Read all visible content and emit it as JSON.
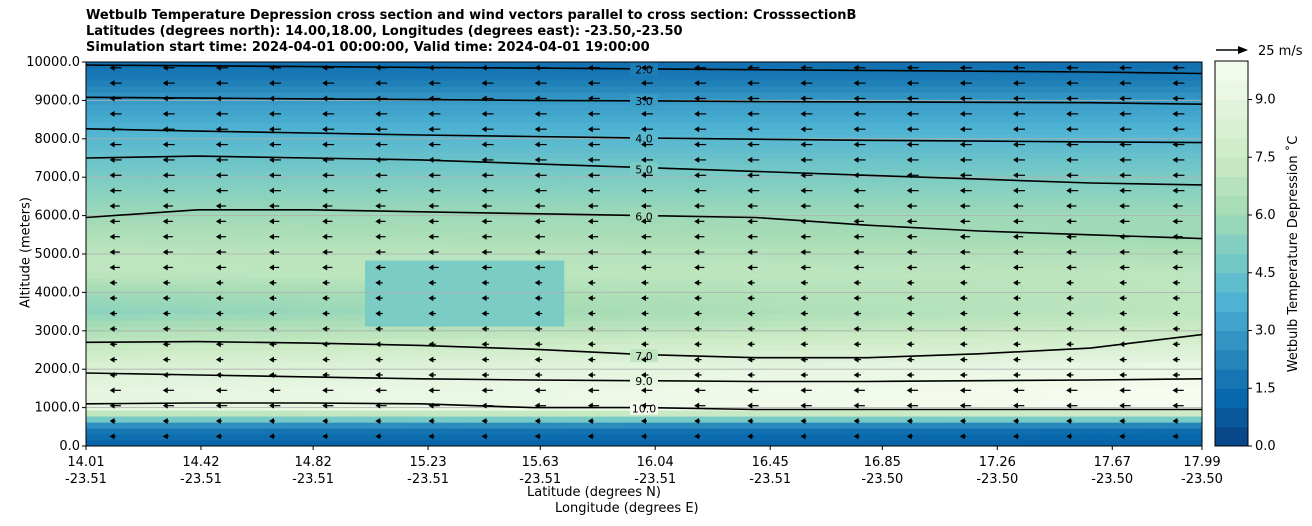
{
  "titles": {
    "line1": "Wetbulb Temperature Depression cross section and wind vectors parallel to cross section: CrosssectionB",
    "line2": "Latitudes (degrees north): 14.00,18.00, Longitudes (degrees east): -23.50,-23.50",
    "line3": "Simulation start time: 2024-04-01 00:00:00, Valid time: 2024-04-01 19:00:00"
  },
  "chart_data": {
    "type": "heatmap",
    "ylabel": "Altitude (meters)",
    "xlabel_lat": "Latitude (degrees N)",
    "xlabel_lon": "Longitude (degrees E)",
    "ylim": [
      0,
      10000
    ],
    "y_ticks": [
      "0.0",
      "1000.0",
      "2000.0",
      "3000.0",
      "4000.0",
      "5000.0",
      "6000.0",
      "7000.0",
      "8000.0",
      "9000.0",
      "10000.0"
    ],
    "y_tick_values": [
      0,
      1000,
      2000,
      3000,
      4000,
      5000,
      6000,
      7000,
      8000,
      9000,
      10000
    ],
    "x_ticks": [
      {
        "lat": "14.01",
        "lon": "-23.51",
        "value": 14.01
      },
      {
        "lat": "14.42",
        "lon": "-23.51",
        "value": 14.42
      },
      {
        "lat": "14.82",
        "lon": "-23.51",
        "value": 14.82
      },
      {
        "lat": "15.23",
        "lon": "-23.51",
        "value": 15.23
      },
      {
        "lat": "15.63",
        "lon": "-23.51",
        "value": 15.63
      },
      {
        "lat": "16.04",
        "lon": "-23.51",
        "value": 16.04
      },
      {
        "lat": "16.45",
        "lon": "-23.51",
        "value": 16.45
      },
      {
        "lat": "16.85",
        "lon": "-23.50",
        "value": 16.85
      },
      {
        "lat": "17.26",
        "lon": "-23.50",
        "value": 17.26
      },
      {
        "lat": "17.67",
        "lon": "-23.50",
        "value": 17.67
      },
      {
        "lat": "17.99",
        "lon": "-23.50",
        "value": 17.99
      }
    ],
    "xlim": [
      14.01,
      17.99
    ],
    "grid": "horizontal",
    "colorbar": {
      "label": "Wetbulb Temperature Depression ˚C",
      "range": [
        0,
        10
      ],
      "ticks": [
        "0.0",
        "1.5",
        "3.0",
        "4.5",
        "6.0",
        "7.5",
        "9.0"
      ],
      "tick_values": [
        0,
        1.5,
        3.0,
        4.5,
        6.0,
        7.5,
        9.0
      ],
      "colors": [
        "#084081",
        "#0868ac",
        "#2b8cbe",
        "#4eb3d3",
        "#7bccc4",
        "#a8ddb5",
        "#ccebc5",
        "#e0f3db",
        "#f7fcf0"
      ]
    },
    "quiver_key": {
      "label": "25 m/s",
      "speed": 25
    },
    "contour_lines": [
      {
        "level": "2.0",
        "y": [
          9920,
          9900,
          9880,
          9860,
          9840,
          9820,
          9800,
          9780,
          9760,
          9740,
          9700
        ]
      },
      {
        "level": "3.0",
        "y": [
          9080,
          9060,
          9040,
          9020,
          9000,
          8990,
          8970,
          8960,
          8950,
          8940,
          8900
        ]
      },
      {
        "level": "4.0",
        "y": [
          8260,
          8200,
          8150,
          8100,
          8060,
          8020,
          7990,
          7960,
          7940,
          7920,
          7900
        ]
      },
      {
        "level": "5.0",
        "y": [
          7500,
          7550,
          7500,
          7450,
          7350,
          7250,
          7150,
          7050,
          6950,
          6850,
          6800
        ]
      },
      {
        "level": "6.0",
        "y": [
          5950,
          6150,
          6150,
          6100,
          6050,
          6000,
          5950,
          5750,
          5600,
          5500,
          5400
        ]
      },
      {
        "level": "7.0",
        "y": [
          2700,
          2720,
          2680,
          2620,
          2520,
          2380,
          2300,
          2300,
          2400,
          2550,
          2900
        ]
      },
      {
        "level": "9.0",
        "y": [
          1900,
          1850,
          1800,
          1750,
          1720,
          1700,
          1680,
          1680,
          1700,
          1720,
          1750
        ]
      },
      {
        "level": "10.0",
        "y": [
          1100,
          1120,
          1120,
          1100,
          1000,
          1000,
          950,
          950,
          950,
          950,
          950
        ]
      }
    ],
    "field": {
      "altitudes": [
        0,
        500,
        1000,
        1500,
        2000,
        2500,
        3000,
        3500,
        4000,
        4500,
        5000,
        5500,
        6000,
        6500,
        7000,
        7500,
        8000,
        8500,
        9000,
        9500,
        10000
      ],
      "profile_north": [
        1.0,
        1.5,
        10.0,
        10.0,
        9.5,
        8.5,
        7.5,
        7.0,
        7.0,
        7.0,
        6.5,
        6.0,
        6.0,
        5.5,
        5.0,
        4.5,
        4.0,
        3.5,
        3.0,
        2.0,
        1.5
      ],
      "profile_south": [
        1.0,
        2.0,
        9.0,
        9.0,
        8.5,
        7.5,
        6.5,
        5.5,
        6.0,
        7.0,
        7.0,
        6.5,
        6.0,
        5.5,
        5.0,
        4.5,
        4.0,
        3.5,
        3.0,
        2.0,
        1.5
      ],
      "mid_dry_core": {
        "lat_range": [
          15.0,
          15.7
        ],
        "alt_range": [
          3200,
          4800
        ],
        "value": 5.0
      }
    }
  }
}
